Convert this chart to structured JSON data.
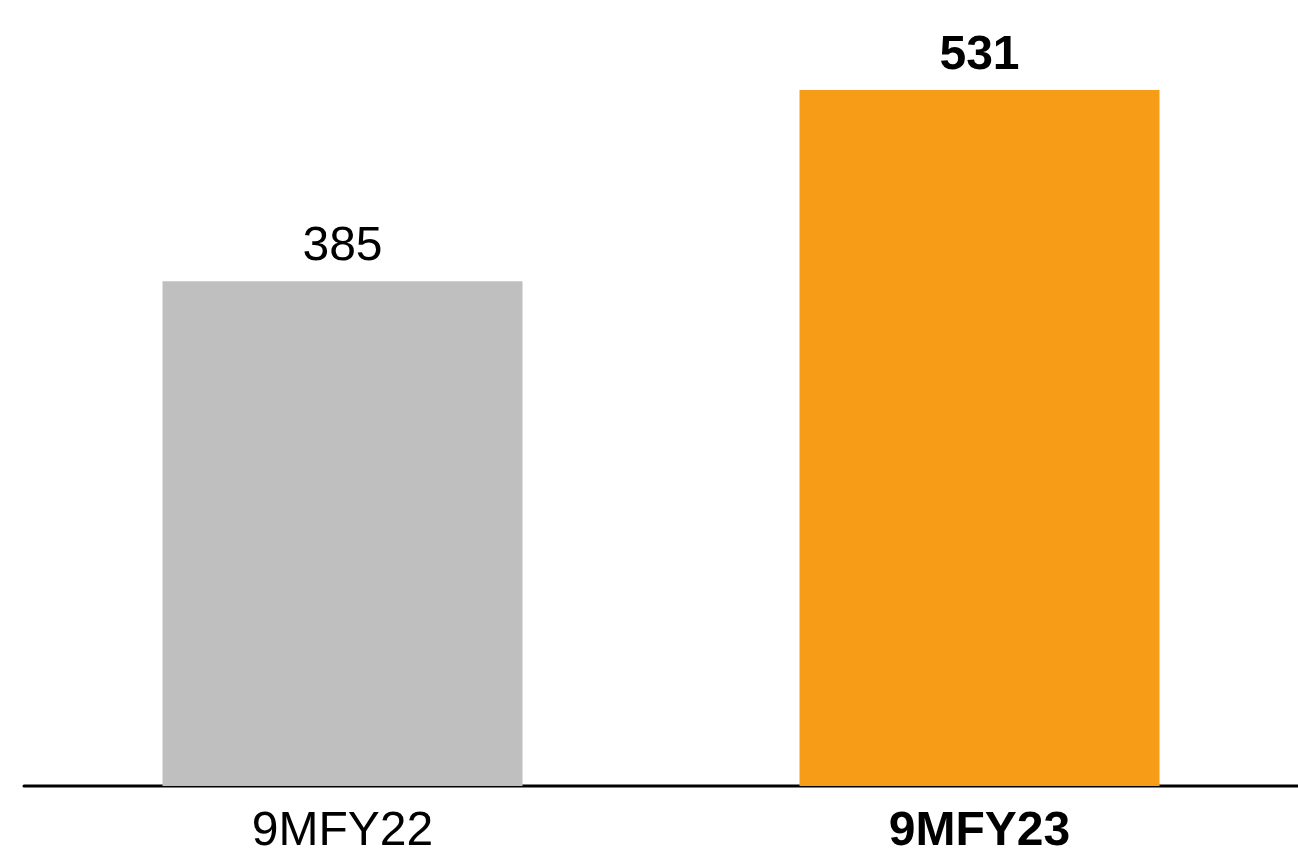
{
  "chart_data": {
    "type": "bar",
    "categories": [
      "9MFY22",
      "9MFY23"
    ],
    "values": [
      385,
      531
    ],
    "colors": [
      "#bfbfbf",
      "#f69c17"
    ],
    "data_labels": true
  }
}
